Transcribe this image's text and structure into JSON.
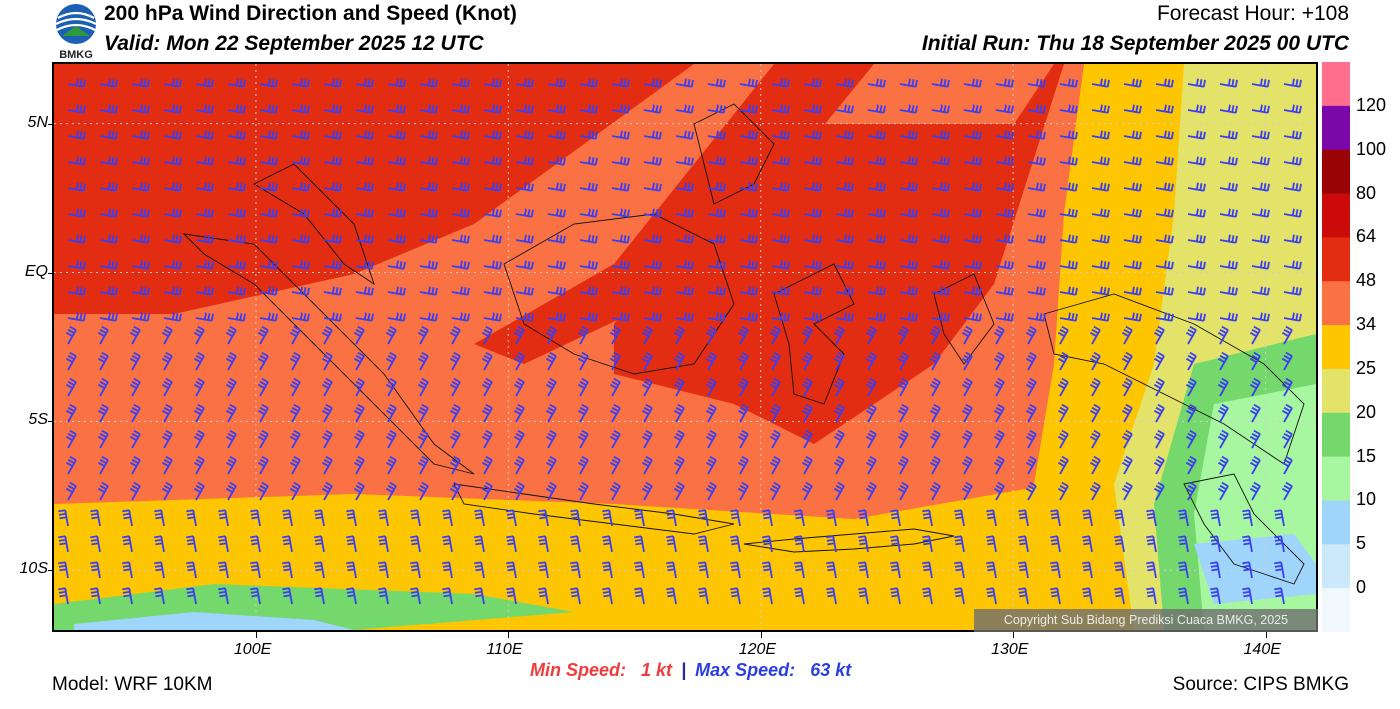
{
  "header": {
    "logo_text": "BMKG",
    "title": "200 hPa Wind Direction and Speed (Knot)",
    "valid": "Valid: Mon 22 September 2025 12 UTC",
    "forecast_hour": "Forecast Hour: +108",
    "initial_run": "Initial Run: Thu 18 September 2025 00 UTC"
  },
  "map": {
    "lon_range": [
      92,
      142
    ],
    "lat_range": [
      -12,
      7
    ],
    "lat_ticks": [
      {
        "label": "5N",
        "lat": 5
      },
      {
        "label": "EQ",
        "lat": 0
      },
      {
        "label": "5S",
        "lat": -5
      },
      {
        "label": "10S",
        "lat": -10
      }
    ],
    "lon_ticks": [
      {
        "label": "100E",
        "lon": 100
      },
      {
        "label": "110E",
        "lon": 110
      },
      {
        "label": "120E",
        "lon": 120
      },
      {
        "label": "130E",
        "lon": 130
      },
      {
        "label": "140E",
        "lon": 140
      }
    ],
    "barb_color": "#3a3ff0",
    "coast_color": "#111111"
  },
  "legend": {
    "colors": [
      "#ff6e8c",
      "#7a08a8",
      "#9a0404",
      "#cc0a0a",
      "#e22d12",
      "#fa7244",
      "#fdc600",
      "#e3e36a",
      "#74d86c",
      "#a6f7a0",
      "#9fd4fb",
      "#cce9fb",
      "#f0f7fd"
    ],
    "labels": [
      "120",
      "100",
      "80",
      "64",
      "48",
      "34",
      "25",
      "20",
      "15",
      "10",
      "5",
      "0"
    ]
  },
  "copyright": "Copyright Sub Bidang Prediksi Cuaca BMKG, 2025",
  "footer": {
    "min_label": "Min Speed:",
    "min_value": "1 kt",
    "separator": "|",
    "max_label": "Max Speed:",
    "max_value": "63 kt",
    "model": "Model: WRF 10KM",
    "source": "Source: CIPS BMKG"
  }
}
